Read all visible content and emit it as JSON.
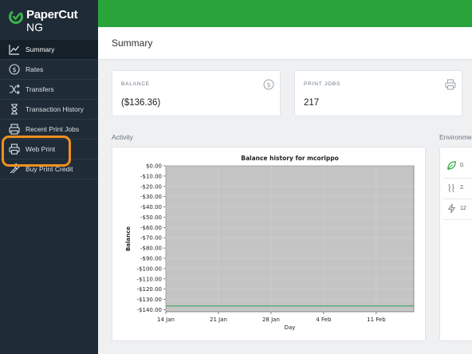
{
  "app": {
    "logo_line1": "PaperCut",
    "logo_line2": "NG",
    "brand_green": "#2aa33b",
    "sidebar_bg": "#1f2b36",
    "highlight_color": "#f0901e"
  },
  "sidebar": {
    "items": [
      {
        "label": "Summary",
        "icon": "chart-line-icon",
        "active": true
      },
      {
        "label": "Rates",
        "icon": "dollar-circle-icon",
        "active": false
      },
      {
        "label": "Transfers",
        "icon": "shuffle-icon",
        "active": false
      },
      {
        "label": "Transaction History",
        "icon": "hourglass-icon",
        "active": false
      },
      {
        "label": "Recent Print Jobs",
        "icon": "printer-stack-icon",
        "active": false
      },
      {
        "label": "Web Print",
        "icon": "printer-icon",
        "active": false
      },
      {
        "label": "Buy Print Credit",
        "icon": "card-icon",
        "active": false
      }
    ]
  },
  "header": {
    "title": "Summary"
  },
  "cards": {
    "balance": {
      "label": "BALANCE",
      "value": "($136.36)",
      "icon": "dollar-circle-icon"
    },
    "print_jobs": {
      "label": "PRINT JOBS",
      "value": "217",
      "icon": "printer-icon"
    }
  },
  "sections": {
    "activity": "Activity",
    "environment": "Environme"
  },
  "environment": {
    "rows": [
      {
        "icon": "leaf-icon",
        "value": "0."
      },
      {
        "icon": "wave-icon",
        "value": "2."
      },
      {
        "icon": "bolt-icon",
        "value": "12"
      }
    ]
  },
  "chart_data": {
    "type": "line",
    "title": "Balance history for mcorippo",
    "xlabel": "Day",
    "ylabel": "Balance",
    "x_ticks": [
      "14 Jan",
      "21 Jan",
      "28 Jan",
      "4 Feb",
      "11 Feb"
    ],
    "y_ticks": [
      "$0.00",
      "-$10.00",
      "-$20.00",
      "-$30.00",
      "-$40.00",
      "-$50.00",
      "-$60.00",
      "-$70.00",
      "-$80.00",
      "-$90.00",
      "-$100.00",
      "-$110.00",
      "-$120.00",
      "-$130.00",
      "-$140.00"
    ],
    "ylim": [
      -142,
      0
    ],
    "xlim": [
      0,
      33
    ],
    "series": [
      {
        "color": "#3aa55a",
        "x": [
          0,
          33
        ],
        "y": [
          -136.36,
          -136.36
        ]
      }
    ],
    "plot_bg": "#c4c4c4",
    "grid": true
  }
}
